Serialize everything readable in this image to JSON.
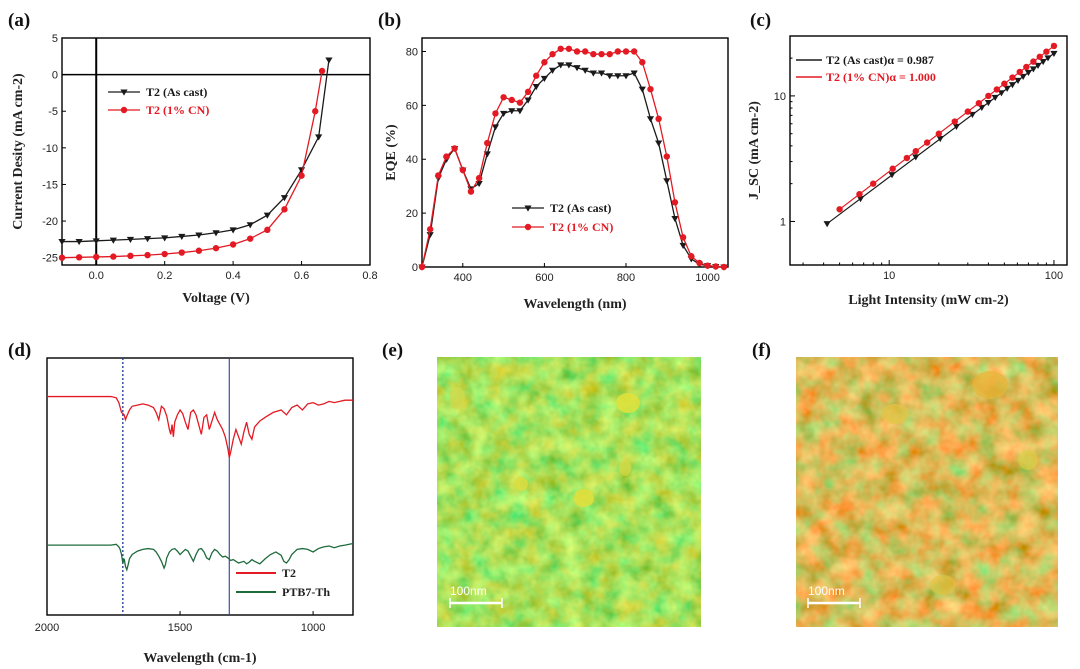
{
  "colors": {
    "black": "#1a1a1a",
    "red": "#e31a23",
    "green": "#1f6b3c",
    "blue": "#2b3f9e"
  },
  "panels": {
    "a": "(a)",
    "b": "(b)",
    "c": "(c)",
    "d": "(d)",
    "e": "(e)",
    "f": "(f)"
  },
  "chart_data": [
    {
      "id": "a",
      "type": "line",
      "xlabel": "Voltage (V)",
      "ylabel": "Current Desity (mA cm-2)",
      "xlim": [
        -0.1,
        0.8
      ],
      "ylim": [
        -26,
        5
      ],
      "xticks": [
        0.0,
        0.2,
        0.4,
        0.6,
        0.8
      ],
      "xtick_labels": [
        "0.0",
        "0.2",
        "0.4",
        "0.6",
        "0.8"
      ],
      "yticks": [
        5,
        0,
        -5,
        -10,
        -15,
        -20,
        -25
      ],
      "ytick_labels": [
        "5",
        "0",
        "-5",
        "-10",
        "-15",
        "-20",
        "-25"
      ],
      "series": [
        {
          "name": "T2 (As cast)",
          "marker": "triangle-down",
          "x": [
            -0.1,
            -0.05,
            0.0,
            0.05,
            0.1,
            0.15,
            0.2,
            0.25,
            0.3,
            0.35,
            0.4,
            0.45,
            0.5,
            0.55,
            0.6,
            0.65,
            0.68
          ],
          "y": [
            -22.8,
            -22.8,
            -22.7,
            -22.6,
            -22.5,
            -22.4,
            -22.3,
            -22.1,
            -21.9,
            -21.6,
            -21.2,
            -20.5,
            -19.2,
            -16.8,
            -13.0,
            -8.5,
            2.0
          ]
        },
        {
          "name": "T2 (1% CN)",
          "marker": "circle",
          "x": [
            -0.1,
            -0.05,
            0.0,
            0.05,
            0.1,
            0.15,
            0.2,
            0.25,
            0.3,
            0.35,
            0.4,
            0.45,
            0.5,
            0.55,
            0.6,
            0.64,
            0.66
          ],
          "y": [
            -25.0,
            -24.95,
            -24.9,
            -24.85,
            -24.75,
            -24.65,
            -24.5,
            -24.3,
            -24.05,
            -23.7,
            -23.2,
            -22.4,
            -21.2,
            -18.4,
            -13.8,
            -5.0,
            0.5
          ]
        }
      ]
    },
    {
      "id": "b",
      "type": "line",
      "xlabel": "Wavelength (nm)",
      "ylabel": "EQE (%)",
      "xlim": [
        300,
        1050
      ],
      "ylim": [
        0,
        85
      ],
      "xticks": [
        400,
        600,
        800,
        1000
      ],
      "xtick_labels": [
        "400",
        "600",
        "800",
        "1000"
      ],
      "yticks": [
        0,
        20,
        40,
        60,
        80
      ],
      "ytick_labels": [
        "0",
        "20",
        "40",
        "60",
        "80"
      ],
      "series": [
        {
          "name": "T2 (As cast)",
          "marker": "triangle-down",
          "x": [
            300,
            320,
            340,
            360,
            380,
            400,
            420,
            440,
            460,
            480,
            500,
            520,
            540,
            560,
            580,
            600,
            620,
            640,
            660,
            680,
            700,
            720,
            740,
            760,
            780,
            800,
            820,
            840,
            860,
            880,
            900,
            920,
            940,
            960,
            980,
            1000,
            1020,
            1040
          ],
          "y": [
            0,
            12,
            33,
            40,
            44,
            36,
            29,
            31,
            42,
            52,
            57,
            58,
            58,
            62,
            67,
            70,
            73,
            75,
            75,
            74,
            73,
            72,
            72,
            71,
            71,
            71,
            72,
            66,
            55,
            46,
            32,
            18,
            8,
            3,
            1,
            0.5,
            0.2,
            0
          ]
        },
        {
          "name": "T2 (1% CN)",
          "marker": "circle",
          "x": [
            300,
            320,
            340,
            360,
            380,
            400,
            420,
            440,
            460,
            480,
            500,
            520,
            540,
            560,
            580,
            600,
            620,
            640,
            660,
            680,
            700,
            720,
            740,
            760,
            780,
            800,
            820,
            840,
            860,
            880,
            900,
            920,
            940,
            960,
            980,
            1000,
            1020,
            1040
          ],
          "y": [
            0,
            14,
            34,
            41,
            44,
            36,
            28,
            33,
            46,
            57,
            63,
            62,
            61,
            65,
            71,
            76,
            79,
            81,
            81,
            80,
            80,
            79,
            79,
            79,
            80,
            80,
            80,
            76,
            66,
            55,
            41,
            24,
            11,
            4,
            1.5,
            0.5,
            0.2,
            0
          ]
        }
      ]
    },
    {
      "id": "c",
      "type": "scatter",
      "xlabel": "Light Intensity (mW cm-2)",
      "ylabel": "J_SC (mA cm-2)",
      "xscale": "log",
      "yscale": "log",
      "xlim": [
        2.5,
        120
      ],
      "ylim": [
        0.45,
        30
      ],
      "xticks": [
        10,
        100
      ],
      "xtick_labels": [
        "10",
        "100"
      ],
      "yticks": [
        1,
        10
      ],
      "ytick_labels": [
        "1",
        "10"
      ],
      "series": [
        {
          "name": "T2 (As cast)",
          "legend": "T2 (As cast)α = 0.987",
          "alpha": 0.987,
          "marker": "triangle-down",
          "x": [
            4.2,
            6.7,
            10.4,
            14.5,
            20.4,
            25.6,
            32.0,
            36.5,
            40.0,
            44.0,
            48.0,
            52.0,
            56.0,
            60.5,
            65.0,
            70.0,
            75.0,
            80.0,
            86.0,
            92.0,
            100.0
          ],
          "y": [
            0.96,
            1.52,
            2.36,
            3.27,
            4.58,
            5.72,
            7.12,
            8.1,
            8.86,
            9.73,
            10.6,
            11.5,
            12.3,
            13.3,
            14.3,
            15.4,
            16.4,
            17.5,
            18.8,
            20.1,
            21.8
          ]
        },
        {
          "name": "T2 (1% CN)",
          "legend": "T2 (1% CN)α = 1.000",
          "alpha": 1.0,
          "marker": "circle",
          "x": [
            5.0,
            6.6,
            8.0,
            10.5,
            12.8,
            14.5,
            17.0,
            20.0,
            25.0,
            30.0,
            35.0,
            40.0,
            45.0,
            50.0,
            56.0,
            62.0,
            68.0,
            75.0,
            82.0,
            90.0,
            100.0
          ],
          "y": [
            1.25,
            1.65,
            2.0,
            2.63,
            3.2,
            3.63,
            4.25,
            5.0,
            6.25,
            7.5,
            8.75,
            10.0,
            11.25,
            12.5,
            14.0,
            15.5,
            17.0,
            18.75,
            20.5,
            22.5,
            25.0
          ]
        }
      ]
    },
    {
      "id": "d",
      "type": "line",
      "xlabel": "Wavelength (cm-1)",
      "ylabel": "",
      "xlim": [
        2000,
        850
      ],
      "ylim": [
        0,
        1
      ],
      "xticks": [
        2000,
        1500,
        1000
      ],
      "xtick_labels": [
        "2000",
        "1500",
        "1000"
      ],
      "vlines": [
        1715,
        1315
      ],
      "series": [
        {
          "name": "T2",
          "x": [
            2000,
            1760,
            1740,
            1730,
            1720,
            1710,
            1705,
            1700,
            1690,
            1680,
            1660,
            1640,
            1620,
            1600,
            1590,
            1580,
            1570,
            1560,
            1550,
            1540,
            1535,
            1530,
            1525,
            1520,
            1510,
            1500,
            1490,
            1480,
            1470,
            1460,
            1450,
            1440,
            1430,
            1420,
            1410,
            1400,
            1390,
            1380,
            1370,
            1360,
            1350,
            1340,
            1330,
            1320,
            1315,
            1310,
            1300,
            1290,
            1280,
            1270,
            1260,
            1250,
            1240,
            1230,
            1220,
            1200,
            1180,
            1150,
            1120,
            1100,
            1080,
            1060,
            1040,
            1020,
            1000,
            980,
            960,
            940,
            920,
            900,
            880,
            850
          ],
          "y": [
            0.93,
            0.93,
            0.92,
            0.88,
            0.8,
            0.78,
            0.74,
            0.77,
            0.82,
            0.85,
            0.86,
            0.87,
            0.86,
            0.84,
            0.8,
            0.74,
            0.85,
            0.83,
            0.77,
            0.66,
            0.62,
            0.7,
            0.6,
            0.72,
            0.78,
            0.82,
            0.79,
            0.72,
            0.66,
            0.8,
            0.82,
            0.78,
            0.7,
            0.62,
            0.76,
            0.78,
            0.66,
            0.73,
            0.8,
            0.74,
            0.7,
            0.66,
            0.6,
            0.5,
            0.43,
            0.47,
            0.58,
            0.66,
            0.6,
            0.54,
            0.64,
            0.72,
            0.62,
            0.58,
            0.68,
            0.73,
            0.76,
            0.8,
            0.82,
            0.78,
            0.84,
            0.86,
            0.82,
            0.87,
            0.88,
            0.86,
            0.87,
            0.89,
            0.88,
            0.89,
            0.9,
            0.9
          ]
        },
        {
          "name": "PTB7-Th",
          "x": [
            2000,
            1760,
            1740,
            1730,
            1725,
            1720,
            1715,
            1710,
            1705,
            1700,
            1695,
            1690,
            1680,
            1660,
            1640,
            1620,
            1600,
            1590,
            1580,
            1570,
            1560,
            1555,
            1550,
            1540,
            1530,
            1520,
            1510,
            1500,
            1490,
            1480,
            1470,
            1460,
            1450,
            1440,
            1430,
            1420,
            1410,
            1400,
            1390,
            1380,
            1370,
            1360,
            1350,
            1340,
            1330,
            1320,
            1310,
            1300,
            1280,
            1260,
            1250,
            1240,
            1230,
            1220,
            1200,
            1180,
            1160,
            1140,
            1120,
            1110,
            1100,
            1090,
            1080,
            1070,
            1060,
            1040,
            1020,
            1000,
            980,
            960,
            940,
            920,
            900,
            880,
            850
          ],
          "y": [
            0.41,
            0.41,
            0.42,
            0.39,
            0.36,
            0.3,
            0.2,
            0.25,
            0.16,
            0.12,
            0.18,
            0.25,
            0.3,
            0.34,
            0.36,
            0.37,
            0.36,
            0.33,
            0.28,
            0.22,
            0.14,
            0.18,
            0.26,
            0.33,
            0.36,
            0.37,
            0.34,
            0.3,
            0.33,
            0.36,
            0.34,
            0.28,
            0.22,
            0.3,
            0.36,
            0.37,
            0.33,
            0.26,
            0.24,
            0.32,
            0.36,
            0.34,
            0.3,
            0.27,
            0.28,
            0.26,
            0.23,
            0.24,
            0.2,
            0.22,
            0.19,
            0.21,
            0.24,
            0.22,
            0.19,
            0.25,
            0.3,
            0.33,
            0.29,
            0.22,
            0.2,
            0.24,
            0.3,
            0.33,
            0.36,
            0.37,
            0.36,
            0.33,
            0.37,
            0.39,
            0.4,
            0.38,
            0.4,
            0.41,
            0.43
          ]
        }
      ]
    }
  ],
  "images": {
    "e": {
      "scalebar_label": "100nm"
    },
    "f": {
      "scalebar_label": "100nm"
    }
  }
}
